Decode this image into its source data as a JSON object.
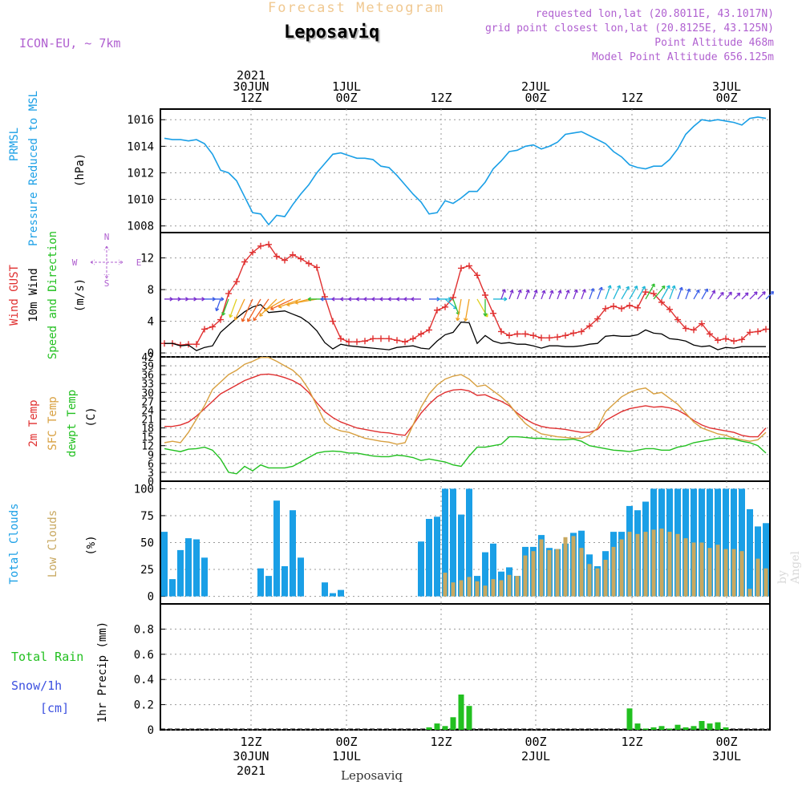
{
  "header": {
    "product": "Forecast Meteogram",
    "location": "Leposaviq",
    "model": "ICON-EU, ~ 7km",
    "requested": "requested lon,lat (20.8011E, 43.1017N)",
    "grid": "grid point closest lon,lat (20.8125E, 43.125N)",
    "point_alt": "Point Altitude 468m",
    "model_alt": "Model Point Altitude 656.125m",
    "footer_location": "Leposaviq",
    "credit": "by Angel"
  },
  "colors": {
    "pressure": "#1a9fe6",
    "gust": "#e03030",
    "wind10m": "#000000",
    "temp2m": "#e03030",
    "sfc": "#d8a040",
    "dewpt": "#22c020",
    "total_clouds": "#1a9fe6",
    "low_clouds": "#c8a860",
    "rain": "#22c020",
    "snow": "#3c50e0",
    "title_orange": "#f0c890",
    "info_purple": "#b060d0"
  },
  "chart_data": [
    {
      "type": "line",
      "title": "PRMSL Pressure Reduced to MSL",
      "ylabel_lines": [
        "PRMSL",
        "Pressure Reduced to MSL",
        "(hPa)"
      ],
      "ylim": [
        1007.5,
        1016.8
      ],
      "yticks": [
        "1008",
        "1010",
        "1012",
        "1014",
        "1016"
      ],
      "ytick_values": [
        1008,
        1010,
        1012,
        1014,
        1016
      ],
      "series": [
        {
          "name": "Pressure",
          "values": [
            1014.6,
            1014.5,
            1014.5,
            1014.4,
            1014.5,
            1014.2,
            1013.4,
            1012.2,
            1012.0,
            1011.4,
            1010.2,
            1009.0,
            1008.9,
            1008.1,
            1008.8,
            1008.7,
            1009.6,
            1010.4,
            1011.1,
            1012.0,
            1012.7,
            1013.4,
            1013.5,
            1013.3,
            1013.1,
            1013.1,
            1013.0,
            1012.5,
            1012.4,
            1011.8,
            1011.1,
            1010.4,
            1009.8,
            1008.9,
            1009.0,
            1009.9,
            1009.7,
            1010.1,
            1010.6,
            1010.6,
            1011.3,
            1012.3,
            1012.9,
            1013.6,
            1013.7,
            1014.0,
            1014.1,
            1013.8,
            1014.0,
            1014.3,
            1014.9,
            1015.0,
            1015.1,
            1014.8,
            1014.5,
            1014.2,
            1013.6,
            1013.2,
            1012.6,
            1012.4,
            1012.3,
            1012.5,
            1012.5,
            1013.0,
            1013.8,
            1014.9,
            1015.5,
            1016.0,
            1015.9,
            1016.0,
            1015.9,
            1015.8,
            1015.6,
            1016.1,
            1016.2,
            1016.1
          ]
        }
      ]
    },
    {
      "type": "line",
      "title": "Wind GUST / 10m Wind Speed and Direction",
      "ylabel_lines": [
        "Wind GUST",
        "10m Wind",
        "Speed and Direction",
        "(m/s)"
      ],
      "ylim": [
        -0.5,
        15.2
      ],
      "yticks": [
        "0",
        "4",
        "8",
        "12"
      ],
      "ytick_values": [
        0,
        4,
        8,
        12
      ],
      "compass": {
        "north": "N",
        "south": "S",
        "west": "W",
        "east": "E"
      },
      "series": [
        {
          "name": "Wind GUST",
          "values": [
            1.2,
            1.2,
            1.0,
            1.1,
            1.1,
            3.0,
            3.3,
            4.2,
            7.5,
            9.0,
            11.5,
            12.7,
            13.5,
            13.7,
            12.2,
            11.7,
            12.4,
            11.9,
            11.3,
            10.8,
            7.1,
            4.0,
            1.8,
            1.4,
            1.4,
            1.5,
            1.8,
            1.8,
            1.8,
            1.6,
            1.4,
            1.8,
            2.4,
            2.9,
            5.4,
            5.8,
            7.0,
            10.7,
            11.0,
            9.8,
            7.3,
            5.0,
            2.7,
            2.2,
            2.4,
            2.4,
            2.2,
            1.9,
            1.9,
            2.0,
            2.2,
            2.5,
            2.7,
            3.4,
            4.3,
            5.6,
            5.9,
            5.6,
            6.0,
            5.7,
            7.7,
            7.5,
            6.4,
            5.5,
            4.2,
            3.1,
            2.9,
            3.7,
            2.4,
            1.6,
            1.8,
            1.5,
            1.7,
            2.6,
            2.7,
            3.0
          ]
        },
        {
          "name": "10m Wind",
          "values": [
            1.2,
            1.2,
            0.9,
            1.0,
            0.3,
            0.7,
            0.9,
            2.6,
            3.5,
            4.4,
            5.2,
            5.8,
            6.1,
            5.1,
            5.2,
            5.3,
            4.9,
            4.5,
            3.8,
            2.8,
            1.3,
            0.5,
            1.1,
            0.9,
            0.8,
            0.7,
            0.6,
            0.5,
            0.4,
            0.7,
            0.8,
            0.9,
            0.6,
            0.5,
            1.5,
            2.3,
            2.6,
            3.9,
            3.8,
            1.2,
            2.2,
            1.5,
            1.2,
            1.3,
            1.1,
            1.1,
            0.9,
            0.6,
            0.9,
            0.9,
            0.8,
            0.8,
            0.9,
            1.1,
            1.2,
            2.1,
            2.2,
            2.1,
            2.1,
            2.3,
            2.9,
            2.5,
            2.4,
            1.8,
            1.7,
            1.5,
            1.0,
            0.8,
            0.9,
            0.4,
            0.7,
            0.6,
            0.8,
            0.8,
            0.8,
            0.8
          ]
        }
      ],
      "arrow_dir_deg": [
        90,
        90,
        90,
        90,
        90,
        90,
        90,
        200,
        200,
        200,
        205,
        205,
        210,
        215,
        225,
        240,
        245,
        250,
        255,
        260,
        270,
        270,
        270,
        270,
        270,
        270,
        270,
        270,
        270,
        270,
        270,
        270,
        270,
        90,
        90,
        130,
        160,
        190,
        190,
        150,
        180,
        90,
        20,
        20,
        20,
        20,
        20,
        20,
        20,
        20,
        20,
        20,
        20,
        20,
        20,
        20,
        25,
        30,
        30,
        30,
        30,
        40,
        30,
        20,
        20,
        20,
        30,
        30,
        30,
        40,
        40,
        45,
        45,
        45,
        45,
        45
      ]
    },
    {
      "type": "line",
      "title": "2m Temp / SFC Temp / dewpt Temp",
      "ylabel_lines": [
        "2m Temp",
        "SFC Temp",
        "dewpt Temp",
        "(C)"
      ],
      "ylim": [
        0,
        42
      ],
      "yticks": [
        "0",
        "3",
        "6",
        "9",
        "12",
        "15",
        "18",
        "21",
        "24",
        "27",
        "30",
        "33",
        "36",
        "39",
        "42"
      ],
      "ytick_values": [
        0,
        3,
        6,
        9,
        12,
        15,
        18,
        21,
        24,
        27,
        30,
        33,
        36,
        39,
        42
      ],
      "series": [
        {
          "name": "2m Temp",
          "values": [
            18.5,
            18.5,
            19.0,
            20.0,
            22.0,
            24.5,
            27.0,
            29.5,
            31.0,
            32.5,
            34.0,
            35.0,
            36.0,
            36.2,
            35.8,
            35.0,
            34.0,
            32.5,
            30.0,
            26.5,
            23.5,
            21.5,
            20.0,
            19.0,
            18.0,
            17.5,
            17.0,
            16.5,
            16.3,
            15.8,
            15.5,
            19.0,
            23.0,
            26.0,
            28.5,
            30.0,
            30.8,
            31.0,
            30.5,
            29.0,
            29.2,
            28.0,
            27.0,
            25.5,
            23.0,
            21.0,
            19.5,
            18.5,
            18.0,
            17.8,
            17.5,
            17.0,
            16.5,
            16.5,
            17.5,
            20.5,
            22.0,
            23.5,
            24.5,
            25.0,
            25.5,
            25.0,
            25.2,
            24.8,
            24.0,
            22.5,
            20.5,
            19.0,
            18.0,
            17.5,
            17.0,
            16.5,
            15.5,
            15.0,
            15.0,
            18.0
          ]
        },
        {
          "name": "SFC Temp",
          "values": [
            13.0,
            13.5,
            13.0,
            16.5,
            21.0,
            25.5,
            31.0,
            33.5,
            36.0,
            37.5,
            39.5,
            40.5,
            41.8,
            41.8,
            40.5,
            39.0,
            37.5,
            35.0,
            31.0,
            25.5,
            20.0,
            18.0,
            17.0,
            16.5,
            15.5,
            14.5,
            14.0,
            13.5,
            13.2,
            12.5,
            13.0,
            19.0,
            25.0,
            29.5,
            32.5,
            34.5,
            35.5,
            36.0,
            34.5,
            32.0,
            32.5,
            30.5,
            28.5,
            26.0,
            22.5,
            19.5,
            17.5,
            16.0,
            15.5,
            15.0,
            14.8,
            14.5,
            14.5,
            15.5,
            18.0,
            23.5,
            26.0,
            28.5,
            30.0,
            31.0,
            31.5,
            29.5,
            30.0,
            28.0,
            26.0,
            23.0,
            20.0,
            18.0,
            17.0,
            16.0,
            15.5,
            14.5,
            14.0,
            13.5,
            14.0,
            16.5
          ]
        },
        {
          "name": "dewpt Temp",
          "values": [
            11.0,
            10.5,
            10.0,
            10.8,
            11.0,
            11.5,
            10.5,
            7.5,
            3.0,
            2.5,
            5.0,
            3.5,
            5.5,
            4.5,
            4.5,
            4.5,
            5.0,
            6.5,
            8.0,
            9.5,
            10.0,
            10.2,
            10.0,
            9.5,
            9.5,
            9.0,
            8.5,
            8.3,
            8.3,
            8.8,
            8.5,
            8.0,
            7.0,
            7.5,
            7.0,
            6.5,
            5.5,
            5.0,
            8.5,
            11.5,
            11.5,
            12.0,
            12.5,
            15.0,
            15.0,
            14.8,
            14.5,
            14.5,
            14.2,
            14.0,
            14.0,
            14.2,
            13.5,
            12.0,
            11.5,
            11.0,
            10.5,
            10.3,
            10.0,
            10.5,
            11.0,
            11.0,
            10.5,
            10.5,
            11.5,
            12.0,
            13.0,
            13.5,
            14.0,
            14.5,
            14.5,
            14.2,
            13.5,
            13.0,
            12.0,
            9.5
          ]
        }
      ]
    },
    {
      "type": "bar",
      "title": "Total Clouds / Low Clouds",
      "ylabel_lines": [
        "Total Clouds",
        "Low Clouds",
        "(%)"
      ],
      "ylim": [
        -7,
        107
      ],
      "yticks": [
        "0",
        "25",
        "50",
        "75",
        "100"
      ],
      "ytick_values": [
        0,
        25,
        50,
        75,
        100
      ],
      "series": [
        {
          "name": "Total Clouds",
          "values": [
            60,
            16,
            43,
            54,
            53,
            36,
            0,
            0,
            0,
            0,
            0,
            0,
            26,
            19,
            89,
            28,
            80,
            36,
            0,
            0,
            13,
            3,
            6,
            0,
            0,
            0,
            0,
            0,
            0,
            0,
            0,
            0,
            51,
            72,
            74,
            100,
            100,
            76,
            100,
            19,
            41,
            49,
            23,
            27,
            19,
            46,
            46,
            57,
            45,
            44,
            49,
            59,
            61,
            39,
            28,
            42,
            60,
            60,
            84,
            80,
            88,
            100,
            100,
            100,
            100,
            100,
            100,
            100,
            100,
            100,
            100,
            100,
            100,
            81,
            65,
            68
          ]
        },
        {
          "name": "Low Clouds",
          "values": [
            0,
            0,
            0,
            0,
            0,
            0,
            0,
            0,
            0,
            0,
            0,
            0,
            0,
            0,
            0,
            0,
            0,
            0,
            0,
            0,
            0,
            0,
            0,
            0,
            0,
            0,
            0,
            0,
            0,
            0,
            0,
            0,
            0,
            0,
            0,
            22,
            13,
            15,
            18,
            14,
            10,
            16,
            15,
            20,
            19,
            38,
            42,
            53,
            43,
            44,
            55,
            56,
            45,
            30,
            26,
            34,
            46,
            53,
            60,
            58,
            60,
            62,
            63,
            60,
            58,
            54,
            50,
            50,
            45,
            48,
            44,
            44,
            42,
            7,
            35,
            26
          ]
        }
      ]
    },
    {
      "type": "bar",
      "title": "1hr Precip",
      "ylabel_lines": [
        "Total   Rain",
        "Snow/1h",
        "[cm]",
        "1hr Precip (mm)"
      ],
      "ylim": [
        0,
        1.0
      ],
      "yticks": [
        "0",
        "0.2",
        "0.4",
        "0.6",
        "0.8"
      ],
      "ytick_values": [
        0,
        0.2,
        0.4,
        0.6,
        0.8
      ],
      "series": [
        {
          "name": "Rain",
          "values": [
            0,
            0,
            0,
            0,
            0,
            0,
            0,
            0,
            0,
            0,
            0,
            0,
            0,
            0,
            0,
            0,
            0,
            0,
            0,
            0,
            0,
            0,
            0,
            0,
            0,
            0,
            0,
            0,
            0,
            0,
            0,
            0,
            0,
            0.02,
            0.05,
            0.03,
            0.1,
            0.28,
            0.19,
            0,
            0,
            0,
            0,
            0,
            0,
            0,
            0,
            0,
            0,
            0,
            0,
            0,
            0,
            0,
            0,
            0,
            0,
            0,
            0.17,
            0.05,
            0.01,
            0.02,
            0.03,
            0.01,
            0.04,
            0.02,
            0.03,
            0.07,
            0.05,
            0.06,
            0.02,
            0,
            0,
            0,
            0,
            0
          ]
        }
      ]
    }
  ],
  "time_axis": {
    "top_labels": [
      {
        "lines": [
          "2021",
          "30JUN",
          "12Z"
        ]
      },
      {
        "lines": [
          "1JUL",
          "00Z"
        ]
      },
      {
        "lines": [
          "12Z"
        ]
      },
      {
        "lines": [
          "2JUL",
          "00Z"
        ]
      },
      {
        "lines": [
          "12Z"
        ]
      },
      {
        "lines": [
          "3JUL",
          "00Z"
        ]
      }
    ],
    "bottom_labels": [
      {
        "lines": [
          "12Z",
          "30JUN",
          "2021"
        ]
      },
      {
        "lines": [
          "00Z",
          "1JUL"
        ]
      },
      {
        "lines": [
          "12Z"
        ]
      },
      {
        "lines": [
          "00Z",
          "2JUL"
        ]
      },
      {
        "lines": [
          "12Z"
        ]
      },
      {
        "lines": [
          "00Z",
          "3JUL"
        ]
      }
    ]
  }
}
